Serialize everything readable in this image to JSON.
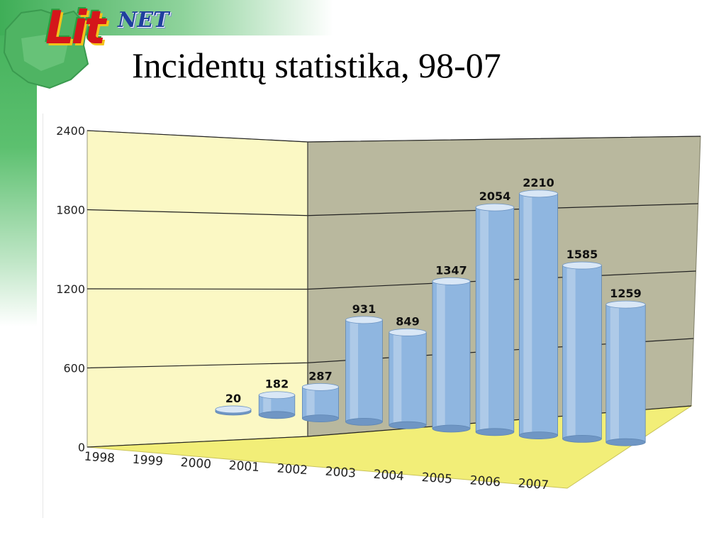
{
  "header": {
    "title": "Incidentų statistika, 98-07",
    "logo": {
      "main": "Lit",
      "sub": "NET"
    }
  },
  "colors": {
    "bar_fill": "#8fb6e0",
    "bar_top": "#d9e7f6",
    "left_wall": "#fbf8c4",
    "back_wall": "#b9b89e",
    "floor": "#f2ee78",
    "brand_green": "#3fae57"
  },
  "chart_data": {
    "type": "bar",
    "style": "3d-cylinder",
    "categories": [
      "1998",
      "1999",
      "2000",
      "2001",
      "2002",
      "2003",
      "2004",
      "2005",
      "2006",
      "2007"
    ],
    "values": [
      20,
      182,
      287,
      931,
      849,
      1347,
      2054,
      2210,
      1585,
      1259
    ],
    "value_labels": [
      "20",
      "182",
      "287",
      "931",
      "849",
      "1347",
      "2054",
      "2210",
      "1585",
      "1259"
    ],
    "yticks": [
      "0",
      "600",
      "1200",
      "1800",
      "2400"
    ],
    "ylim": [
      0,
      2400
    ],
    "grid": true,
    "legend": "none"
  }
}
